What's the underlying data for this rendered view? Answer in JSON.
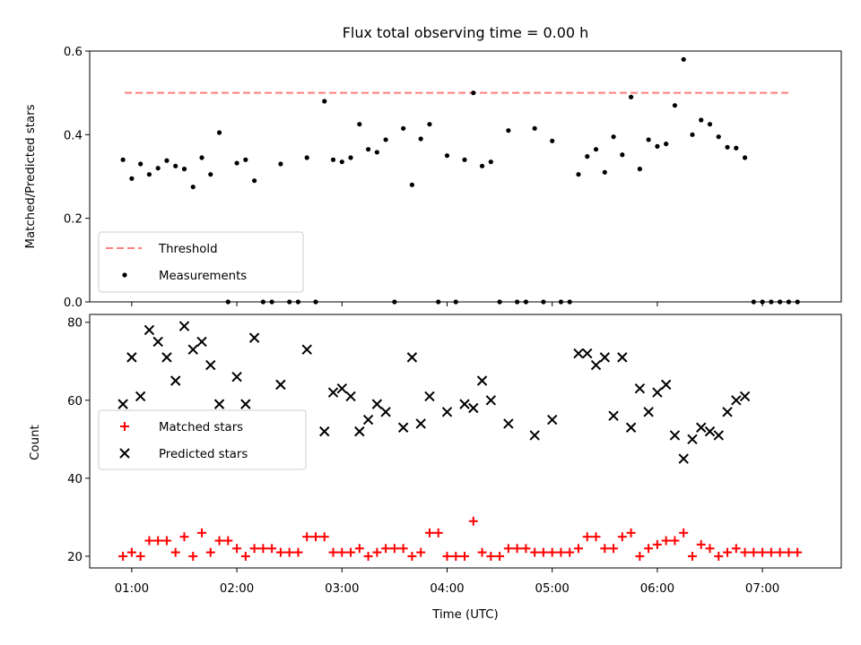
{
  "chart_data": [
    {
      "type": "scatter",
      "title": "Flux total observing time = 0.00 h",
      "xlabel": "",
      "ylabel": "Matched/Predicted stars",
      "ylim": [
        0,
        0.6
      ],
      "yticks": [
        "0.0",
        "0.2",
        "0.4",
        "0.6"
      ],
      "xlim_hours": [
        0.6,
        7.75
      ],
      "threshold": {
        "name": "Threshold",
        "value": 0.5,
        "x_range": [
          "00:56",
          "07:16"
        ],
        "color": "#ff7f7f"
      },
      "series": [
        {
          "name": "Measurements",
          "color": "#000000",
          "points": [
            [
              "00:55",
              0.34
            ],
            [
              "01:00",
              0.295
            ],
            [
              "01:05",
              0.33
            ],
            [
              "01:10",
              0.305
            ],
            [
              "01:15",
              0.32
            ],
            [
              "01:20",
              0.338
            ],
            [
              "01:25",
              0.325
            ],
            [
              "01:30",
              0.318
            ],
            [
              "01:35",
              0.275
            ],
            [
              "01:40",
              0.345
            ],
            [
              "01:45",
              0.305
            ],
            [
              "01:50",
              0.405
            ],
            [
              "01:55",
              0.0
            ],
            [
              "02:00",
              0.332
            ],
            [
              "02:05",
              0.34
            ],
            [
              "02:10",
              0.29
            ],
            [
              "02:15",
              0.0
            ],
            [
              "02:20",
              0.0
            ],
            [
              "02:25",
              0.33
            ],
            [
              "02:30",
              0.0
            ],
            [
              "02:35",
              0.0
            ],
            [
              "02:40",
              0.345
            ],
            [
              "02:45",
              0.0
            ],
            [
              "02:50",
              0.48
            ],
            [
              "02:55",
              0.34
            ],
            [
              "03:00",
              0.335
            ],
            [
              "03:05",
              0.345
            ],
            [
              "03:10",
              0.425
            ],
            [
              "03:15",
              0.365
            ],
            [
              "03:20",
              0.358
            ],
            [
              "03:25",
              0.388
            ],
            [
              "03:30",
              0.0
            ],
            [
              "03:35",
              0.415
            ],
            [
              "03:40",
              0.28
            ],
            [
              "03:45",
              0.39
            ],
            [
              "03:50",
              0.425
            ],
            [
              "03:55",
              0.0
            ],
            [
              "04:00",
              0.35
            ],
            [
              "04:05",
              0.0
            ],
            [
              "04:10",
              0.34
            ],
            [
              "04:15",
              0.5
            ],
            [
              "04:20",
              0.325
            ],
            [
              "04:25",
              0.335
            ],
            [
              "04:30",
              0.0
            ],
            [
              "04:35",
              0.41
            ],
            [
              "04:40",
              0.0
            ],
            [
              "04:45",
              0.0
            ],
            [
              "04:50",
              0.415
            ],
            [
              "04:55",
              0.0
            ],
            [
              "05:00",
              0.385
            ],
            [
              "05:05",
              0.0
            ],
            [
              "05:10",
              0.0
            ],
            [
              "05:15",
              0.305
            ],
            [
              "05:20",
              0.348
            ],
            [
              "05:25",
              0.365
            ],
            [
              "05:30",
              0.31
            ],
            [
              "05:35",
              0.395
            ],
            [
              "05:40",
              0.352
            ],
            [
              "05:45",
              0.49
            ],
            [
              "05:50",
              0.318
            ],
            [
              "05:55",
              0.388
            ],
            [
              "06:00",
              0.372
            ],
            [
              "06:05",
              0.378
            ],
            [
              "06:10",
              0.47
            ],
            [
              "06:15",
              0.58
            ],
            [
              "06:20",
              0.4
            ],
            [
              "06:25",
              0.435
            ],
            [
              "06:30",
              0.425
            ],
            [
              "06:35",
              0.395
            ],
            [
              "06:40",
              0.37
            ],
            [
              "06:45",
              0.368
            ],
            [
              "06:50",
              0.345
            ],
            [
              "06:55",
              0.0
            ],
            [
              "07:00",
              0.0
            ],
            [
              "07:05",
              0.0
            ],
            [
              "07:10",
              0.0
            ],
            [
              "07:15",
              0.0
            ],
            [
              "07:20",
              0.0
            ]
          ]
        }
      ],
      "legend": {
        "placement": "lower-left",
        "entries": [
          "Threshold",
          "Measurements"
        ]
      }
    },
    {
      "type": "scatter",
      "xlabel": "Time (UTC)",
      "ylabel": "Count",
      "ylim": [
        17,
        82
      ],
      "yticks": [
        "20",
        "40",
        "60",
        "80"
      ],
      "xticks": [
        "01:00",
        "02:00",
        "03:00",
        "04:00",
        "05:00",
        "06:00",
        "07:00"
      ],
      "xlim_hours": [
        0.6,
        7.75
      ],
      "series": [
        {
          "name": "Matched stars",
          "marker": "+",
          "color": "#ff0000",
          "points": [
            [
              "00:55",
              20
            ],
            [
              "01:00",
              21
            ],
            [
              "01:05",
              20
            ],
            [
              "01:10",
              24
            ],
            [
              "01:15",
              24
            ],
            [
              "01:20",
              24
            ],
            [
              "01:25",
              21
            ],
            [
              "01:30",
              25
            ],
            [
              "01:35",
              20
            ],
            [
              "01:40",
              26
            ],
            [
              "01:45",
              21
            ],
            [
              "01:50",
              24
            ],
            [
              "01:55",
              24
            ],
            [
              "02:00",
              22
            ],
            [
              "02:05",
              20
            ],
            [
              "02:10",
              22
            ],
            [
              "02:15",
              22
            ],
            [
              "02:20",
              22
            ],
            [
              "02:25",
              21
            ],
            [
              "02:30",
              21
            ],
            [
              "02:35",
              21
            ],
            [
              "02:40",
              25
            ],
            [
              "02:45",
              25
            ],
            [
              "02:50",
              25
            ],
            [
              "02:55",
              21
            ],
            [
              "03:00",
              21
            ],
            [
              "03:05",
              21
            ],
            [
              "03:10",
              22
            ],
            [
              "03:15",
              20
            ],
            [
              "03:20",
              21
            ],
            [
              "03:25",
              22
            ],
            [
              "03:30",
              22
            ],
            [
              "03:35",
              22
            ],
            [
              "03:40",
              20
            ],
            [
              "03:45",
              21
            ],
            [
              "03:50",
              26
            ],
            [
              "03:55",
              26
            ],
            [
              "04:00",
              20
            ],
            [
              "04:05",
              20
            ],
            [
              "04:10",
              20
            ],
            [
              "04:15",
              29
            ],
            [
              "04:20",
              21
            ],
            [
              "04:25",
              20
            ],
            [
              "04:30",
              20
            ],
            [
              "04:35",
              22
            ],
            [
              "04:40",
              22
            ],
            [
              "04:45",
              22
            ],
            [
              "04:50",
              21
            ],
            [
              "04:55",
              21
            ],
            [
              "05:00",
              21
            ],
            [
              "05:05",
              21
            ],
            [
              "05:10",
              21
            ],
            [
              "05:15",
              22
            ],
            [
              "05:20",
              25
            ],
            [
              "05:25",
              25
            ],
            [
              "05:30",
              22
            ],
            [
              "05:35",
              22
            ],
            [
              "05:40",
              25
            ],
            [
              "05:45",
              26
            ],
            [
              "05:50",
              20
            ],
            [
              "05:55",
              22
            ],
            [
              "06:00",
              23
            ],
            [
              "06:05",
              24
            ],
            [
              "06:10",
              24
            ],
            [
              "06:15",
              26
            ],
            [
              "06:20",
              20
            ],
            [
              "06:25",
              23
            ],
            [
              "06:30",
              22
            ],
            [
              "06:35",
              20
            ],
            [
              "06:40",
              21
            ],
            [
              "06:45",
              22
            ],
            [
              "06:50",
              21
            ],
            [
              "06:55",
              21
            ],
            [
              "07:00",
              21
            ],
            [
              "07:05",
              21
            ],
            [
              "07:10",
              21
            ],
            [
              "07:15",
              21
            ],
            [
              "07:20",
              21
            ]
          ]
        },
        {
          "name": "Predicted stars",
          "marker": "x",
          "color": "#000000",
          "points": [
            [
              "00:55",
              59
            ],
            [
              "01:00",
              71
            ],
            [
              "01:05",
              61
            ],
            [
              "01:10",
              78
            ],
            [
              "01:15",
              75
            ],
            [
              "01:20",
              71
            ],
            [
              "01:25",
              65
            ],
            [
              "01:30",
              79
            ],
            [
              "01:35",
              73
            ],
            [
              "01:40",
              75
            ],
            [
              "01:45",
              69
            ],
            [
              "01:50",
              59
            ],
            [
              "02:00",
              66
            ],
            [
              "02:05",
              59
            ],
            [
              "02:10",
              76
            ],
            [
              "02:25",
              64
            ],
            [
              "02:40",
              73
            ],
            [
              "02:50",
              52
            ],
            [
              "02:55",
              62
            ],
            [
              "03:00",
              63
            ],
            [
              "03:05",
              61
            ],
            [
              "03:10",
              52
            ],
            [
              "03:15",
              55
            ],
            [
              "03:20",
              59
            ],
            [
              "03:25",
              57
            ],
            [
              "03:35",
              53
            ],
            [
              "03:40",
              71
            ],
            [
              "03:45",
              54
            ],
            [
              "03:50",
              61
            ],
            [
              "04:00",
              57
            ],
            [
              "04:10",
              59
            ],
            [
              "04:15",
              58
            ],
            [
              "04:20",
              65
            ],
            [
              "04:25",
              60
            ],
            [
              "04:35",
              54
            ],
            [
              "04:50",
              51
            ],
            [
              "05:00",
              55
            ],
            [
              "05:15",
              72
            ],
            [
              "05:20",
              72
            ],
            [
              "05:25",
              69
            ],
            [
              "05:30",
              71
            ],
            [
              "05:35",
              56
            ],
            [
              "05:40",
              71
            ],
            [
              "05:45",
              53
            ],
            [
              "05:50",
              63
            ],
            [
              "05:55",
              57
            ],
            [
              "06:00",
              62
            ],
            [
              "06:05",
              64
            ],
            [
              "06:10",
              51
            ],
            [
              "06:15",
              45
            ],
            [
              "06:20",
              50
            ],
            [
              "06:25",
              53
            ],
            [
              "06:30",
              52
            ],
            [
              "06:35",
              51
            ],
            [
              "06:40",
              57
            ],
            [
              "06:45",
              60
            ],
            [
              "06:50",
              61
            ]
          ]
        }
      ],
      "legend": {
        "placement": "center-left",
        "entries": [
          "Matched stars",
          "Predicted stars"
        ]
      }
    }
  ]
}
